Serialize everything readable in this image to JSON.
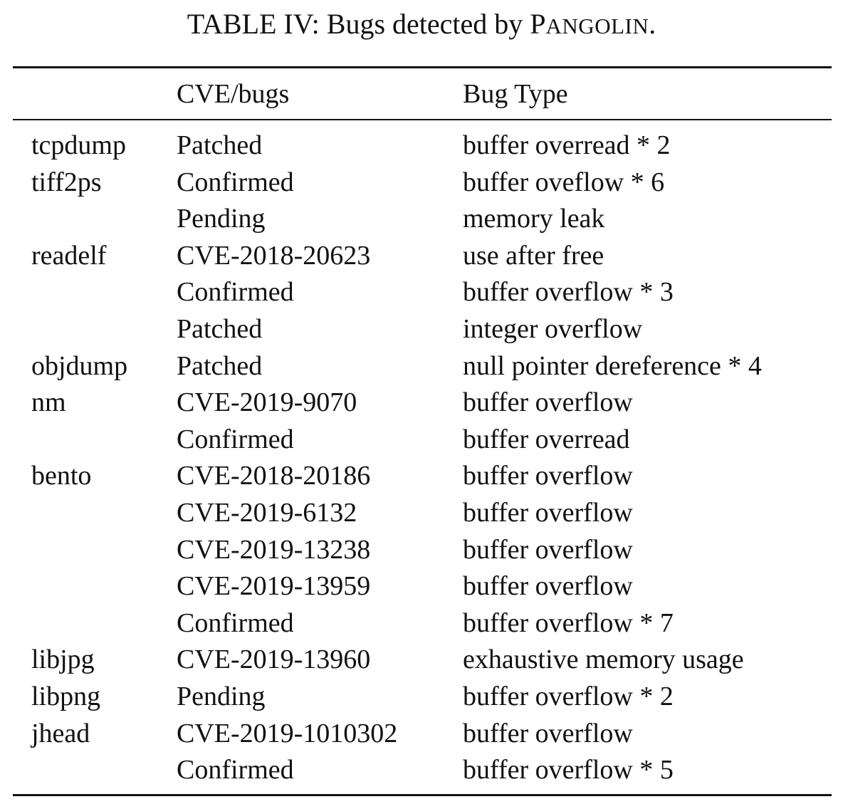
{
  "caption": {
    "prefix": "TABLE IV: Bugs detected by ",
    "tool_initial": "P",
    "tool_rest": "ANGOLIN",
    "suffix": "."
  },
  "table": {
    "headers": [
      "",
      "CVE/bugs",
      "Bug Type"
    ],
    "rows": [
      {
        "program": "tcpdump",
        "status": "Patched",
        "bug_type": "buffer overread * 2"
      },
      {
        "program": "tiff2ps",
        "status": "Confirmed",
        "bug_type": "buffer oveflow * 6"
      },
      {
        "program": "",
        "status": "Pending",
        "bug_type": "memory leak"
      },
      {
        "program": "readelf",
        "status": "CVE-2018-20623",
        "bug_type": "use after free"
      },
      {
        "program": "",
        "status": "Confirmed",
        "bug_type": "buffer overflow * 3"
      },
      {
        "program": "",
        "status": "Patched",
        "bug_type": "integer overflow"
      },
      {
        "program": "objdump",
        "status": "Patched",
        "bug_type": "null pointer dereference * 4"
      },
      {
        "program": "nm",
        "status": "CVE-2019-9070",
        "bug_type": "buffer overflow"
      },
      {
        "program": "",
        "status": "Confirmed",
        "bug_type": "buffer overread"
      },
      {
        "program": "bento",
        "status": "CVE-2018-20186",
        "bug_type": "buffer overflow"
      },
      {
        "program": "",
        "status": "CVE-2019-6132",
        "bug_type": "buffer overflow"
      },
      {
        "program": "",
        "status": "CVE-2019-13238",
        "bug_type": "buffer overflow"
      },
      {
        "program": "",
        "status": "CVE-2019-13959",
        "bug_type": "buffer overflow"
      },
      {
        "program": "",
        "status": "Confirmed",
        "bug_type": "buffer overflow * 7"
      },
      {
        "program": "libjpg",
        "status": "CVE-2019-13960",
        "bug_type": "exhaustive memory usage"
      },
      {
        "program": "libpng",
        "status": "Pending",
        "bug_type": "buffer overflow * 2"
      },
      {
        "program": "jhead",
        "status": "CVE-2019-1010302",
        "bug_type": "buffer overflow"
      },
      {
        "program": "",
        "status": "Confirmed",
        "bug_type": "buffer overflow * 5"
      }
    ]
  }
}
